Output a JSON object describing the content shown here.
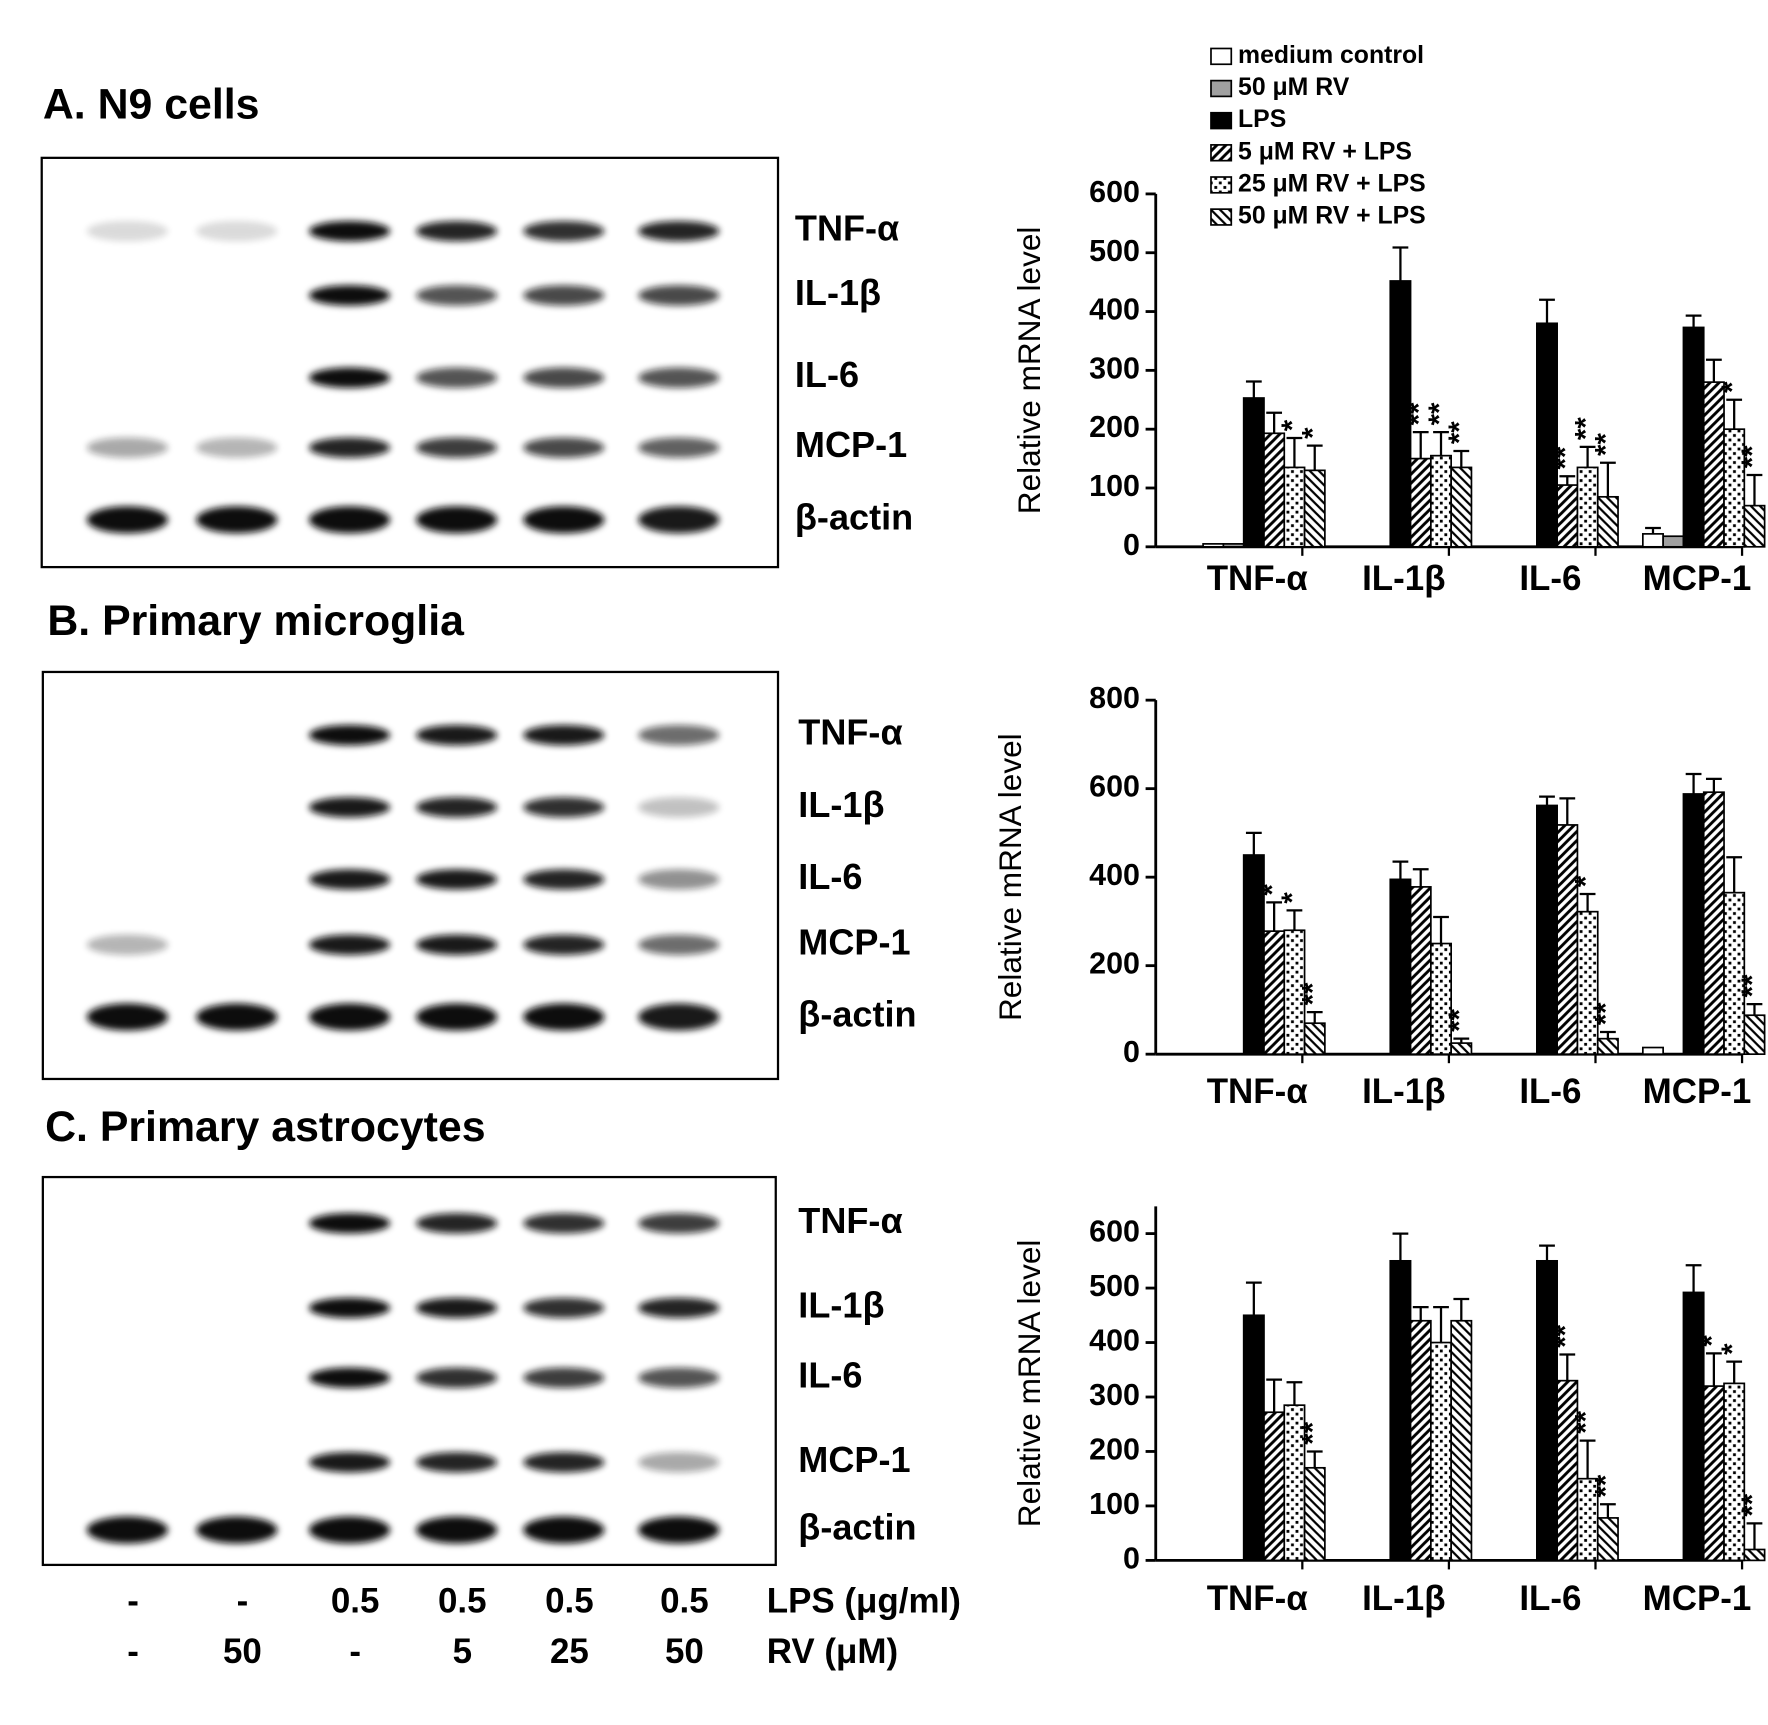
{
  "panels": [
    {
      "title": "A. N9 cells",
      "band_labels": [
        "TNF-α",
        "IL-1β",
        "IL-6",
        "MCP-1",
        "β-actin"
      ]
    },
    {
      "title": "B. Primary microglia",
      "band_labels": [
        "TNF-α",
        "IL-1β",
        "IL-6",
        "MCP-1",
        "β-actin"
      ]
    },
    {
      "title": "C. Primary astrocytes",
      "band_labels": [
        "TNF-α",
        "IL-1β",
        "IL-6",
        "MCP-1",
        "β-actin"
      ]
    }
  ],
  "lps_row": {
    "label": "LPS (μg/ml)",
    "values": [
      "-",
      "-",
      "0.5",
      "0.5",
      "0.5",
      "0.5"
    ]
  },
  "rv_row": {
    "label": "RV (μM)",
    "values": [
      "-",
      "50",
      "-",
      "5",
      "25",
      "50"
    ]
  },
  "chart_data": [
    {
      "type": "bar",
      "ylabel": "Relative mRNA level",
      "categories": [
        "TNF-α",
        "IL-1β",
        "IL-6",
        "MCP-1"
      ],
      "ylim": [
        0,
        600
      ],
      "yticks": [
        0,
        100,
        200,
        300,
        400,
        500,
        600
      ],
      "series": [
        {
          "name": "medium control",
          "color": "#ffffff",
          "pattern": "solid",
          "values": [
            5,
            0,
            0,
            22
          ],
          "errors": [
            null,
            null,
            null,
            10
          ],
          "significance": [
            null,
            null,
            null,
            null
          ]
        },
        {
          "name": "50 μM RV",
          "color": "#a0a0a0",
          "pattern": "solid",
          "values": [
            5,
            0,
            0,
            18
          ],
          "errors": [
            null,
            null,
            null,
            null
          ],
          "significance": [
            null,
            null,
            null,
            null
          ]
        },
        {
          "name": "LPS",
          "color": "#000000",
          "pattern": "solid",
          "values": [
            253,
            452,
            380,
            373
          ],
          "errors": [
            28,
            57,
            40,
            20
          ],
          "significance": [
            null,
            null,
            null,
            null
          ]
        },
        {
          "name": "5 μM RV + LPS",
          "color": "#000000",
          "pattern": "hatch",
          "values": [
            193,
            150,
            105,
            280
          ],
          "errors": [
            35,
            45,
            15,
            38
          ],
          "significance": [
            null,
            "**",
            "**",
            null
          ]
        },
        {
          "name": "25 μM RV + LPS",
          "color": "#000000",
          "pattern": "dots",
          "values": [
            135,
            155,
            135,
            200
          ],
          "errors": [
            50,
            40,
            35,
            50
          ],
          "significance": [
            "*",
            "**",
            "**",
            "*"
          ]
        },
        {
          "name": "50 μM RV + LPS",
          "color": "#000000",
          "pattern": "backhatch",
          "values": [
            130,
            135,
            85,
            70
          ],
          "errors": [
            42,
            28,
            58,
            52
          ],
          "significance": [
            "*",
            "**",
            "**",
            "**"
          ]
        }
      ]
    },
    {
      "type": "bar",
      "ylabel": "Relative mRNA level",
      "categories": [
        "TNF-α",
        "IL-1β",
        "IL-6",
        "MCP-1"
      ],
      "ylim": [
        0,
        800
      ],
      "yticks": [
        0,
        200,
        400,
        600,
        800
      ],
      "series": [
        {
          "color": "#ffffff",
          "pattern": "solid",
          "values": [
            0,
            0,
            0,
            15
          ],
          "errors": [
            null,
            null,
            null,
            null
          ],
          "significance": [
            null,
            null,
            null,
            null
          ]
        },
        {
          "color": "#a0a0a0",
          "pattern": "solid",
          "values": [
            0,
            0,
            0,
            0
          ],
          "errors": [
            null,
            null,
            null,
            null
          ],
          "significance": [
            null,
            null,
            null,
            null
          ]
        },
        {
          "color": "#000000",
          "pattern": "solid",
          "values": [
            450,
            395,
            562,
            588
          ],
          "errors": [
            50,
            40,
            20,
            45
          ],
          "significance": [
            null,
            null,
            null,
            null
          ]
        },
        {
          "color": "#000000",
          "pattern": "hatch",
          "values": [
            278,
            378,
            518,
            592
          ],
          "errors": [
            65,
            40,
            60,
            30
          ],
          "significance": [
            "*",
            null,
            null,
            null
          ]
        },
        {
          "color": "#000000",
          "pattern": "dots",
          "values": [
            280,
            250,
            322,
            365
          ],
          "errors": [
            45,
            60,
            40,
            80
          ],
          "significance": [
            "*",
            null,
            "*",
            null
          ]
        },
        {
          "color": "#000000",
          "pattern": "backhatch",
          "values": [
            70,
            25,
            35,
            88
          ],
          "errors": [
            25,
            10,
            15,
            25
          ],
          "significance": [
            "**",
            "**",
            "**",
            "**"
          ]
        }
      ]
    },
    {
      "type": "bar",
      "ylabel": "Relative mRNA level",
      "categories": [
        "TNF-α",
        "IL-1β",
        "IL-6",
        "MCP-1"
      ],
      "ylim": [
        0,
        650
      ],
      "yticks": [
        0,
        100,
        200,
        300,
        400,
        500,
        600
      ],
      "series": [
        {
          "color": "#ffffff",
          "pattern": "solid",
          "values": [
            0,
            0,
            0,
            0
          ],
          "errors": [
            null,
            null,
            null,
            null
          ],
          "significance": [
            null,
            null,
            null,
            null
          ]
        },
        {
          "color": "#a0a0a0",
          "pattern": "solid",
          "values": [
            0,
            0,
            0,
            0
          ],
          "errors": [
            null,
            null,
            null,
            null
          ],
          "significance": [
            null,
            null,
            null,
            null
          ]
        },
        {
          "color": "#000000",
          "pattern": "solid",
          "values": [
            450,
            550,
            550,
            492
          ],
          "errors": [
            60,
            50,
            28,
            50
          ],
          "significance": [
            null,
            null,
            null,
            null
          ]
        },
        {
          "color": "#000000",
          "pattern": "hatch",
          "values": [
            272,
            440,
            330,
            320
          ],
          "errors": [
            60,
            25,
            48,
            60
          ],
          "significance": [
            null,
            null,
            "**",
            "*"
          ]
        },
        {
          "color": "#000000",
          "pattern": "dots",
          "values": [
            285,
            400,
            150,
            325
          ],
          "errors": [
            42,
            65,
            70,
            40
          ],
          "significance": [
            null,
            null,
            "**",
            "*"
          ]
        },
        {
          "color": "#000000",
          "pattern": "backhatch",
          "values": [
            170,
            440,
            78,
            20
          ],
          "errors": [
            30,
            40,
            25,
            48
          ],
          "significance": [
            "**",
            null,
            "**",
            "**"
          ]
        }
      ]
    }
  ]
}
